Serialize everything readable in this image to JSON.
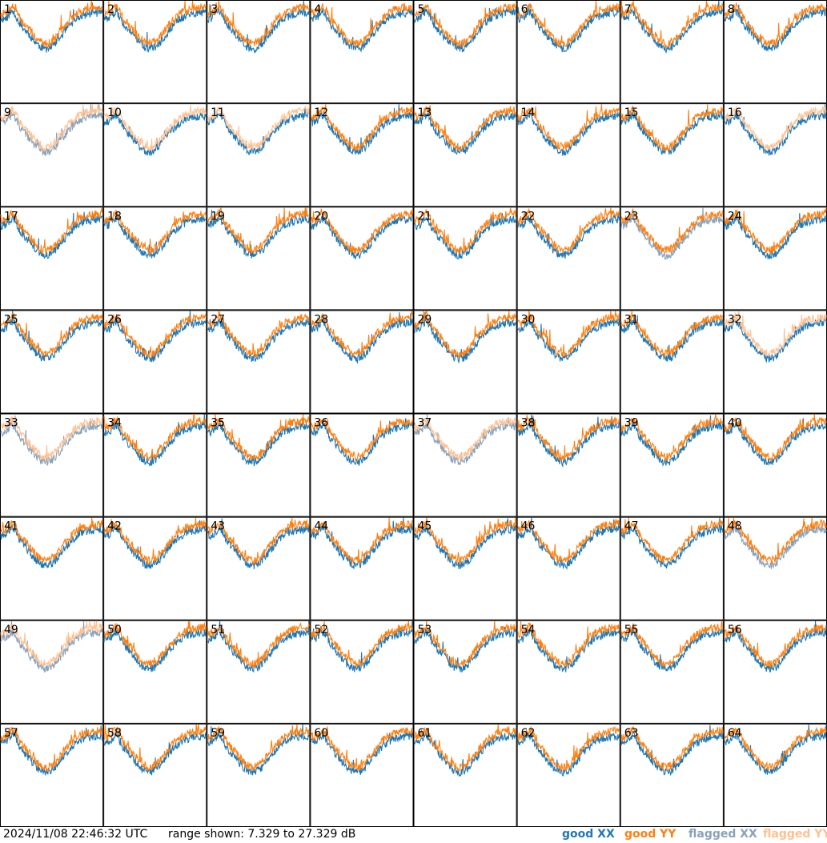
{
  "chart_data": {
    "type": "line",
    "layout": "8x8 small multiples",
    "xlabel": "",
    "ylabel": "",
    "ylim": [
      7.329,
      27.329
    ],
    "units": "dB",
    "legend_placement": "bottom-right",
    "series_styles": {
      "good_xx": {
        "color": "#1f77b4"
      },
      "good_yy": {
        "color": "#ff7f0e"
      },
      "flagged_xx": {
        "color": "#8aa2bb"
      },
      "flagged_yy": {
        "color": "#ffc08f"
      }
    },
    "panel_labels": [
      "1",
      "2",
      "3",
      "4",
      "5",
      "6",
      "7",
      "8",
      "9",
      "10",
      "11",
      "12",
      "13",
      "14",
      "15",
      "16",
      "17",
      "18",
      "19",
      "20",
      "21",
      "22",
      "23",
      "24",
      "25",
      "26",
      "27",
      "28",
      "29",
      "30",
      "31",
      "32",
      "33",
      "34",
      "35",
      "36",
      "37",
      "38",
      "39",
      "40",
      "41",
      "42",
      "43",
      "44",
      "45",
      "46",
      "47",
      "48",
      "49",
      "50",
      "51",
      "52",
      "53",
      "54",
      "55",
      "56",
      "57",
      "58",
      "59",
      "60",
      "61",
      "62",
      "63",
      "64"
    ],
    "panel_status": [
      "good",
      "good",
      "good",
      "good",
      "good",
      "good",
      "good",
      "good",
      "flagged",
      "flagged_yy",
      "flagged_yy",
      "good",
      "good",
      "good",
      "good",
      "flagged_yy",
      "good",
      "good",
      "good",
      "good",
      "good",
      "good",
      "flagged_xx",
      "good",
      "good",
      "good",
      "good",
      "good",
      "good",
      "good",
      "good",
      "flagged_yy",
      "flagged",
      "good",
      "good",
      "good",
      "flagged",
      "good",
      "good",
      "good",
      "good",
      "good",
      "good",
      "good",
      "good",
      "good",
      "good",
      "flagged_xx",
      "flagged",
      "good",
      "good",
      "good",
      "good",
      "good",
      "good",
      "good",
      "good",
      "good",
      "good",
      "good",
      "good",
      "good",
      "good",
      "good"
    ]
  },
  "footer": {
    "timestamp": "2024/11/08 22:46:32 UTC",
    "range": "range shown: 7.329 to 27.329 dB",
    "legend": {
      "good_xx": "good XX",
      "good_yy": "good YY",
      "flagged_xx": "flagged XX",
      "flagged_yy": "flagged YY"
    }
  }
}
